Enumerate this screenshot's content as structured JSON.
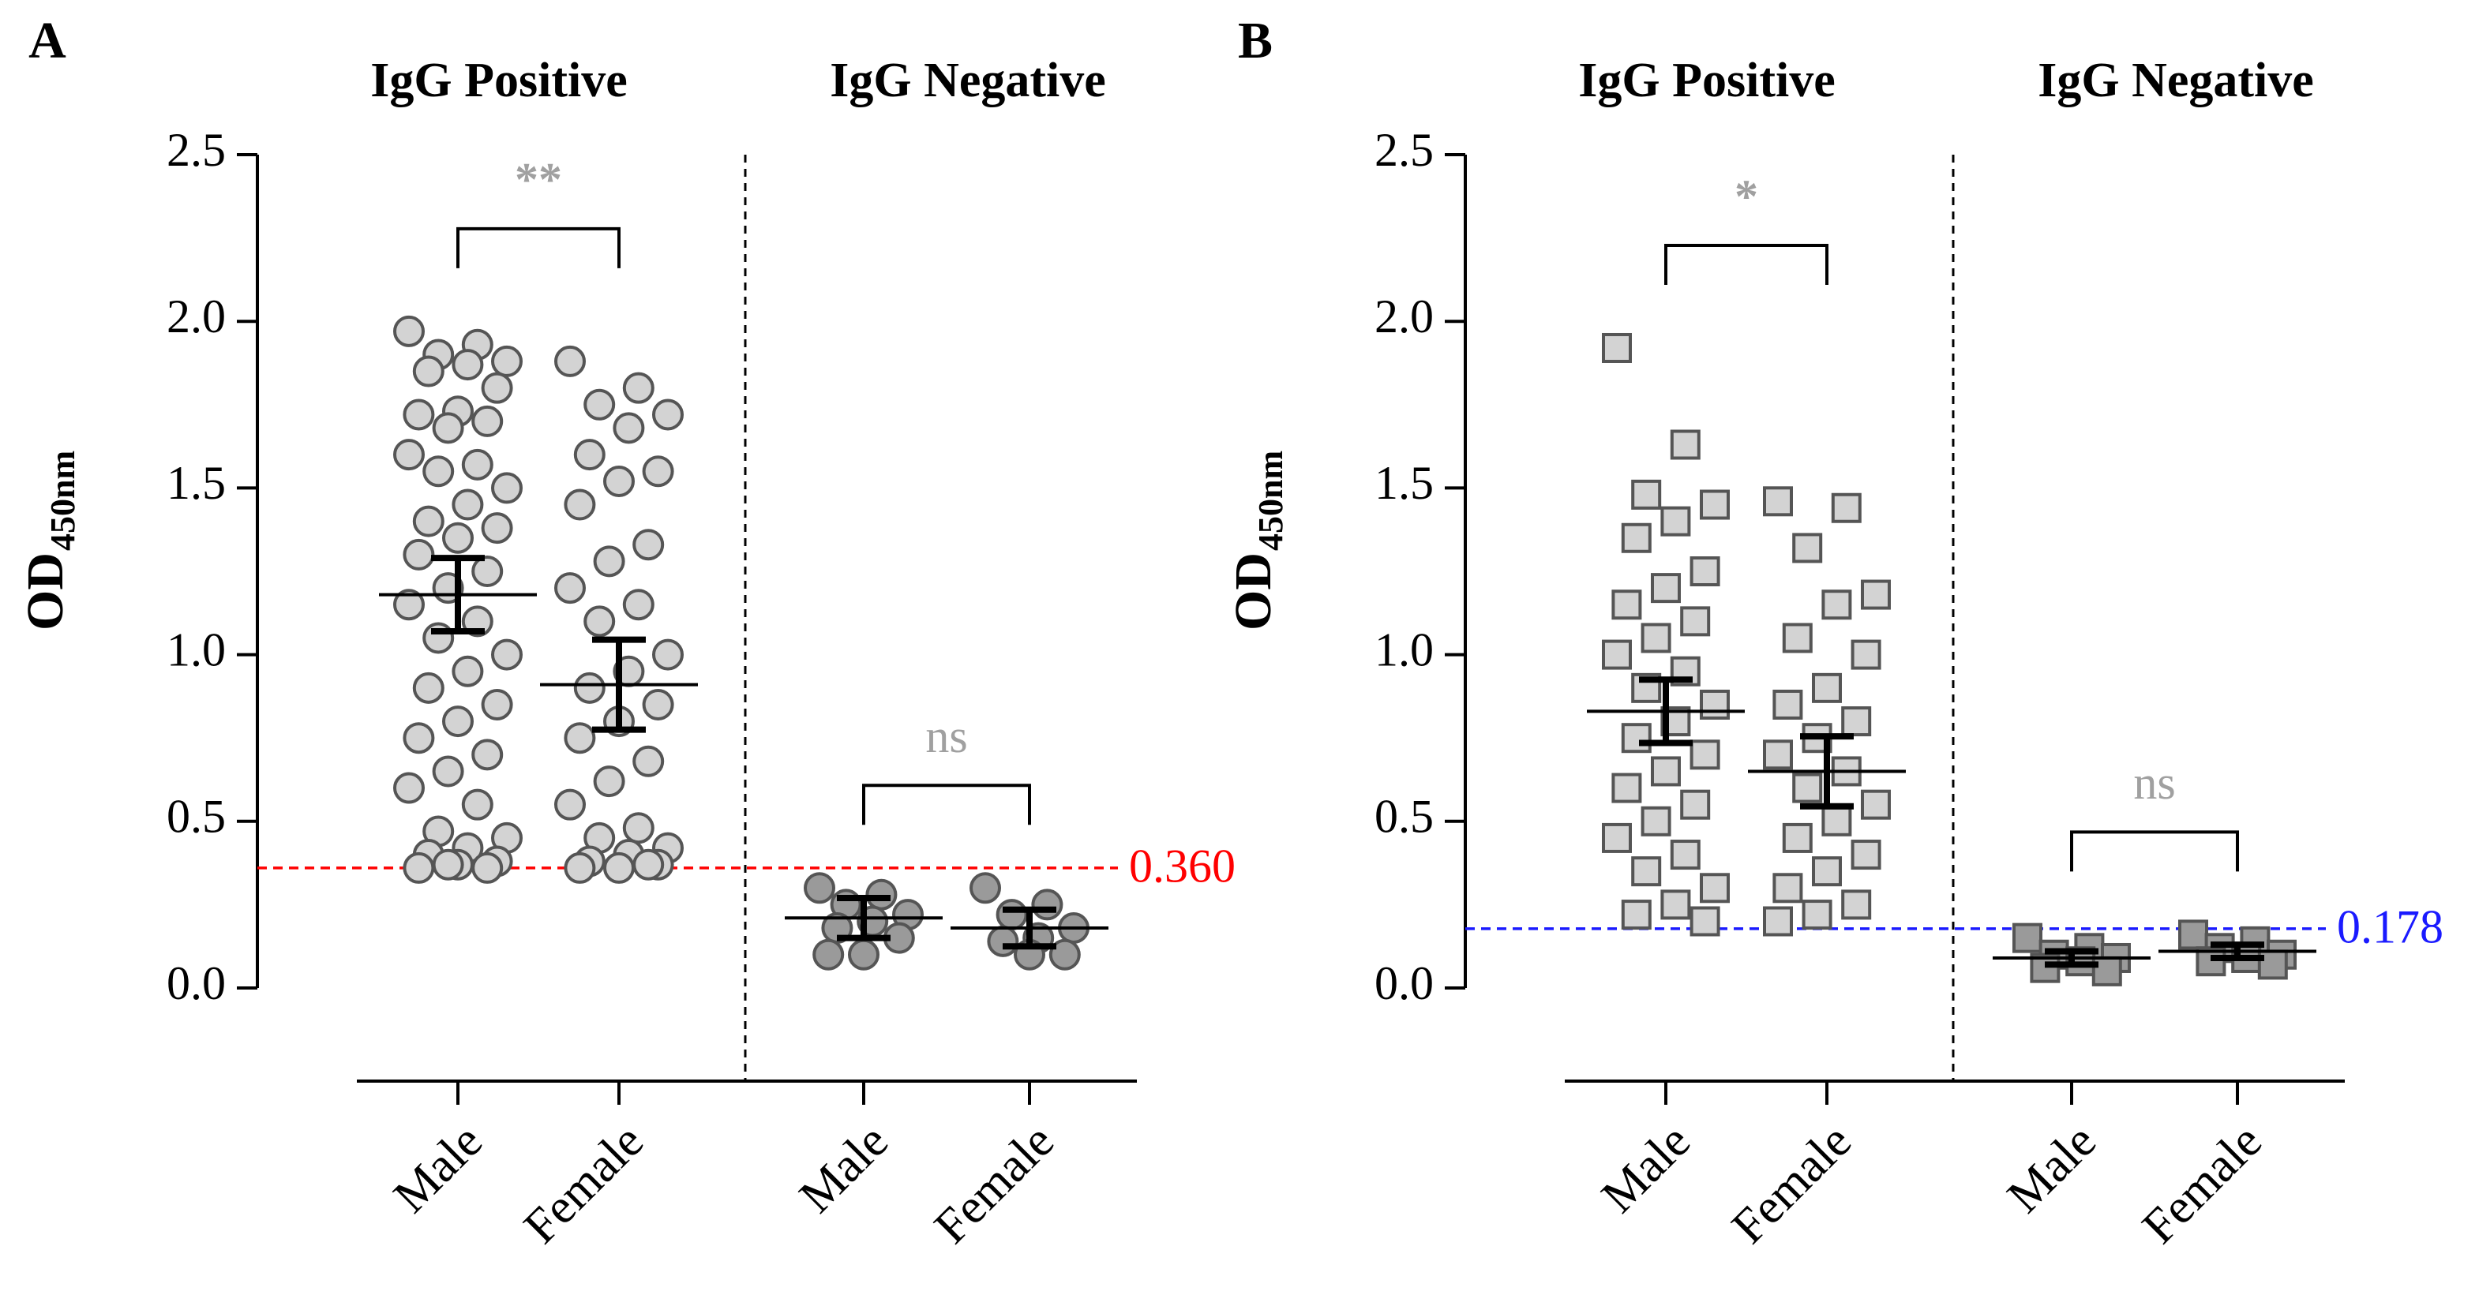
{
  "chart_data": [
    {
      "type": "dotplot",
      "panel": "A",
      "marker": "circle",
      "group_titles": [
        "IgG Positive",
        "IgG Negative"
      ],
      "categories": [
        "Male",
        "Female",
        "Male",
        "Female"
      ],
      "ylabel": "OD",
      "ylabel_sub": "450nm",
      "ylim": [
        0,
        2.5
      ],
      "yticks": [
        {
          "value": 0,
          "label": "0.0"
        },
        0.5,
        {
          "value": 1,
          "label": "1.0"
        },
        1.5,
        {
          "value": 2,
          "label": "2.0"
        },
        2.5
      ],
      "colors": [
        "#d3d3d3",
        "#d3d3d3",
        "#9a9a9a",
        "#9a9a9a"
      ],
      "dots": [
        [
          1.97,
          1.93,
          1.9,
          1.88,
          1.87,
          1.85,
          1.8,
          1.73,
          1.72,
          1.7,
          1.68,
          1.6,
          1.57,
          1.55,
          1.5,
          1.45,
          1.4,
          1.38,
          1.35,
          1.3,
          1.25,
          1.2,
          1.15,
          1.1,
          1.05,
          1.0,
          0.95,
          0.9,
          0.85,
          0.8,
          0.75,
          0.7,
          0.65,
          0.6,
          0.55,
          0.47,
          0.45,
          0.42,
          0.4,
          0.38,
          0.37,
          0.36,
          0.36,
          0.37
        ],
        [
          1.88,
          1.8,
          1.75,
          1.72,
          1.68,
          1.6,
          1.55,
          1.52,
          1.45,
          1.33,
          1.28,
          1.2,
          1.15,
          1.1,
          1.0,
          0.95,
          0.9,
          0.85,
          0.8,
          0.75,
          0.68,
          0.62,
          0.55,
          0.48,
          0.45,
          0.42,
          0.4,
          0.38,
          0.37,
          0.36,
          0.36,
          0.37
        ],
        [
          0.3,
          0.28,
          0.25,
          0.22,
          0.2,
          0.18,
          0.15,
          0.1,
          0.1
        ],
        [
          0.3,
          0.25,
          0.22,
          0.18,
          0.15,
          0.14,
          0.1,
          0.1
        ]
      ],
      "means": [
        1.18,
        0.91,
        0.21,
        0.18
      ],
      "errors": [
        0.11,
        0.135,
        0.06,
        0.055
      ],
      "comparisons": [
        "**",
        "ns"
      ],
      "cutoff": 0.36,
      "cutoff_label": "0.360",
      "cutoff_color": "#ff0000"
    },
    {
      "type": "dotplot",
      "panel": "B",
      "marker": "square",
      "group_titles": [
        "IgG Positive",
        "IgG Negative"
      ],
      "categories": [
        "Male",
        "Female",
        "Male",
        "Female"
      ],
      "ylabel": "OD",
      "ylabel_sub": "450nm",
      "ylim": [
        0,
        2.5
      ],
      "yticks": [
        {
          "value": 0,
          "label": "0.0"
        },
        0.5,
        {
          "value": 1,
          "label": "1.0"
        },
        1.5,
        {
          "value": 2,
          "label": "2.0"
        },
        2.5
      ],
      "colors": [
        "#d3d3d3",
        "#d3d3d3",
        "#9a9a9a",
        "#9a9a9a"
      ],
      "dots": [
        [
          1.92,
          1.63,
          1.48,
          1.45,
          1.4,
          1.35,
          1.25,
          1.2,
          1.15,
          1.1,
          1.05,
          1.0,
          0.95,
          0.9,
          0.85,
          0.8,
          0.75,
          0.7,
          0.65,
          0.6,
          0.55,
          0.5,
          0.45,
          0.4,
          0.35,
          0.3,
          0.25,
          0.22,
          0.2
        ],
        [
          1.46,
          1.44,
          1.32,
          1.18,
          1.15,
          1.05,
          1.0,
          0.9,
          0.85,
          0.8,
          0.75,
          0.7,
          0.65,
          0.6,
          0.55,
          0.5,
          0.45,
          0.4,
          0.35,
          0.3,
          0.25,
          0.22,
          0.2
        ],
        [
          0.15,
          0.12,
          0.1,
          0.09,
          0.08,
          0.06,
          0.05
        ],
        [
          0.16,
          0.14,
          0.12,
          0.1,
          0.09,
          0.08,
          0.07
        ]
      ],
      "means": [
        0.83,
        0.65,
        0.09,
        0.11
      ],
      "errors": [
        0.095,
        0.105,
        0.02,
        0.02
      ],
      "comparisons": [
        "*",
        "ns"
      ],
      "cutoff": 0.178,
      "cutoff_label": "0.178",
      "cutoff_color": "#1a1aff"
    }
  ]
}
